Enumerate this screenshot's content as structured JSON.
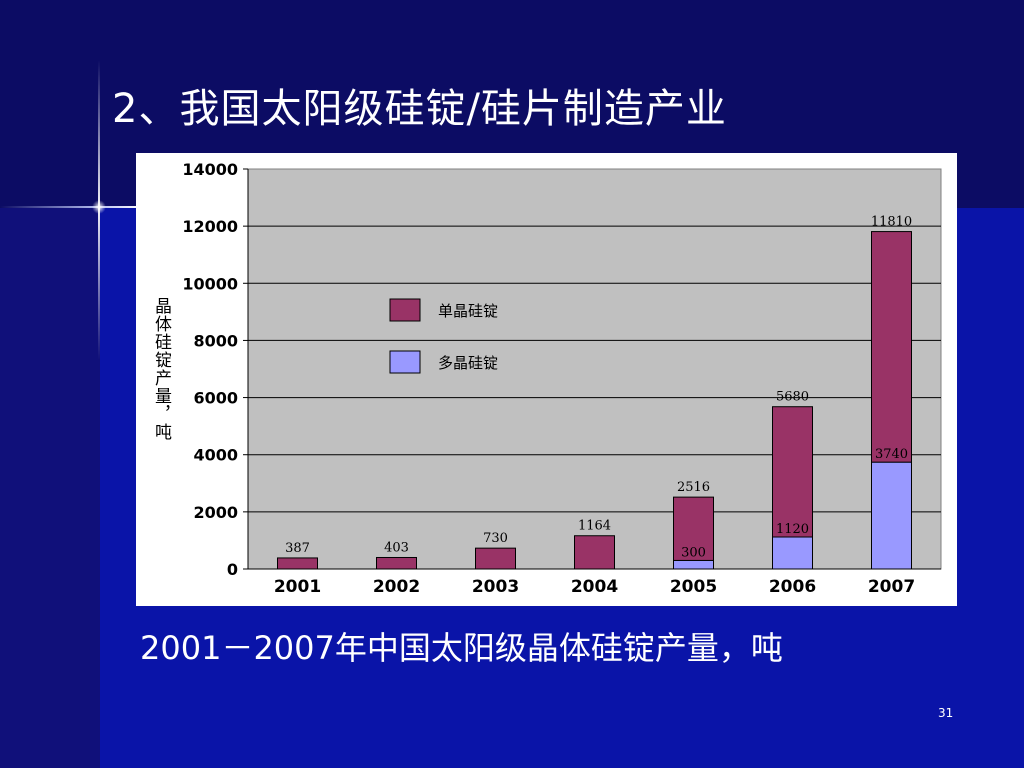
{
  "slide": {
    "title": "2、我国太阳级硅锭/硅片制造产业",
    "caption": "2001－2007年中国太阳级晶体硅锭产量，吨",
    "page_number": "31"
  },
  "chart_data": {
    "type": "bar",
    "stacked": true,
    "categories": [
      "2001",
      "2002",
      "2003",
      "2004",
      "2005",
      "2006",
      "2007"
    ],
    "series": [
      {
        "name": "多晶硅锭",
        "color": "#9999ff",
        "values": [
          0,
          0,
          0,
          0,
          300,
          1120,
          3740
        ]
      },
      {
        "name": "单晶硅锭",
        "color": "#993366",
        "values": [
          387,
          403,
          730,
          1164,
          2216,
          4560,
          8070
        ]
      }
    ],
    "data_labels": {
      "totals": [
        "387",
        "403",
        "730",
        "1164",
        "2516",
        "5680",
        "11810"
      ],
      "lower": [
        "",
        "",
        "",
        "",
        "300",
        "1120",
        "3740"
      ]
    },
    "ylabel": "晶体硅锭产量，吨",
    "xlabel": "",
    "ylim": [
      0,
      14000
    ],
    "yticks": [
      0,
      2000,
      4000,
      6000,
      8000,
      10000,
      12000,
      14000
    ],
    "grid": true,
    "legend_position": "upper-left inside plot",
    "legend": [
      {
        "label": "单晶硅锭",
        "color": "#993366"
      },
      {
        "label": "多晶硅锭",
        "color": "#9999ff"
      }
    ],
    "plot_background": "#c0c0c0"
  }
}
